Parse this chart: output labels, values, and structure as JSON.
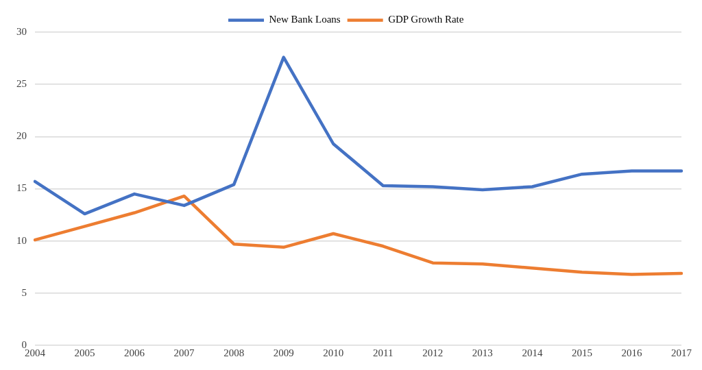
{
  "chart_data": {
    "type": "line",
    "categories": [
      "2004",
      "2005",
      "2006",
      "2007",
      "2008",
      "2009",
      "2010",
      "2011",
      "2012",
      "2013",
      "2014",
      "2015",
      "2016",
      "2017"
    ],
    "series": [
      {
        "name": "New Bank Loans",
        "color": "#4472c4",
        "values": [
          15.7,
          12.6,
          14.5,
          13.4,
          15.4,
          27.6,
          19.3,
          15.3,
          15.2,
          14.9,
          15.2,
          16.4,
          16.7,
          16.7
        ]
      },
      {
        "name": "GDP Growth Rate",
        "color": "#ed7d31",
        "values": [
          10.1,
          11.4,
          12.7,
          14.3,
          9.7,
          9.4,
          10.7,
          9.5,
          7.9,
          7.8,
          7.4,
          7.0,
          6.8,
          6.9
        ]
      }
    ],
    "ylim": [
      0,
      30
    ],
    "yticks": [
      0,
      5,
      10,
      15,
      20,
      25,
      30
    ],
    "grid": "y",
    "legend": "top",
    "marker": "none",
    "line_style": "solid"
  }
}
